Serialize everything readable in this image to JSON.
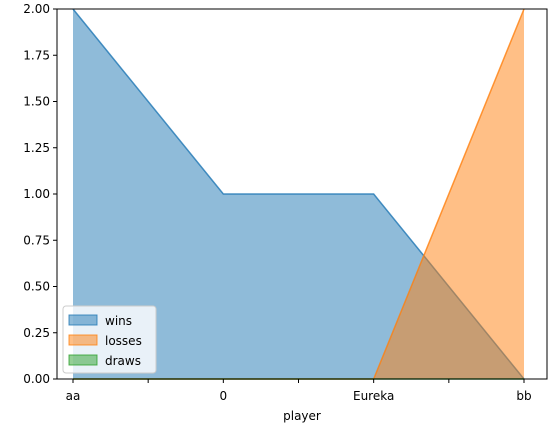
{
  "chart_data": {
    "type": "area",
    "title": "",
    "xlabel": "player",
    "ylabel": "",
    "categories": [
      "aa",
      "0",
      "Eureka",
      "bb"
    ],
    "x_tick_labels": [
      "aa",
      "",
      "0",
      "",
      "Eureka",
      "",
      "bb"
    ],
    "y_ticks": [
      "0.00",
      "0.25",
      "0.50",
      "0.75",
      "1.00",
      "1.25",
      "1.50",
      "1.75",
      "2.00"
    ],
    "ylim": [
      0,
      2.0
    ],
    "stacked": false,
    "grid": false,
    "legend_position": "lower-left",
    "series": [
      {
        "name": "wins",
        "values": [
          2,
          1,
          1,
          0
        ],
        "color": "#1f77b4"
      },
      {
        "name": "losses",
        "values": [
          0,
          0,
          0,
          2
        ],
        "color": "#ff7f0e"
      },
      {
        "name": "draws",
        "values": [
          0,
          0,
          0,
          0
        ],
        "color": "#2ca02c"
      }
    ]
  }
}
